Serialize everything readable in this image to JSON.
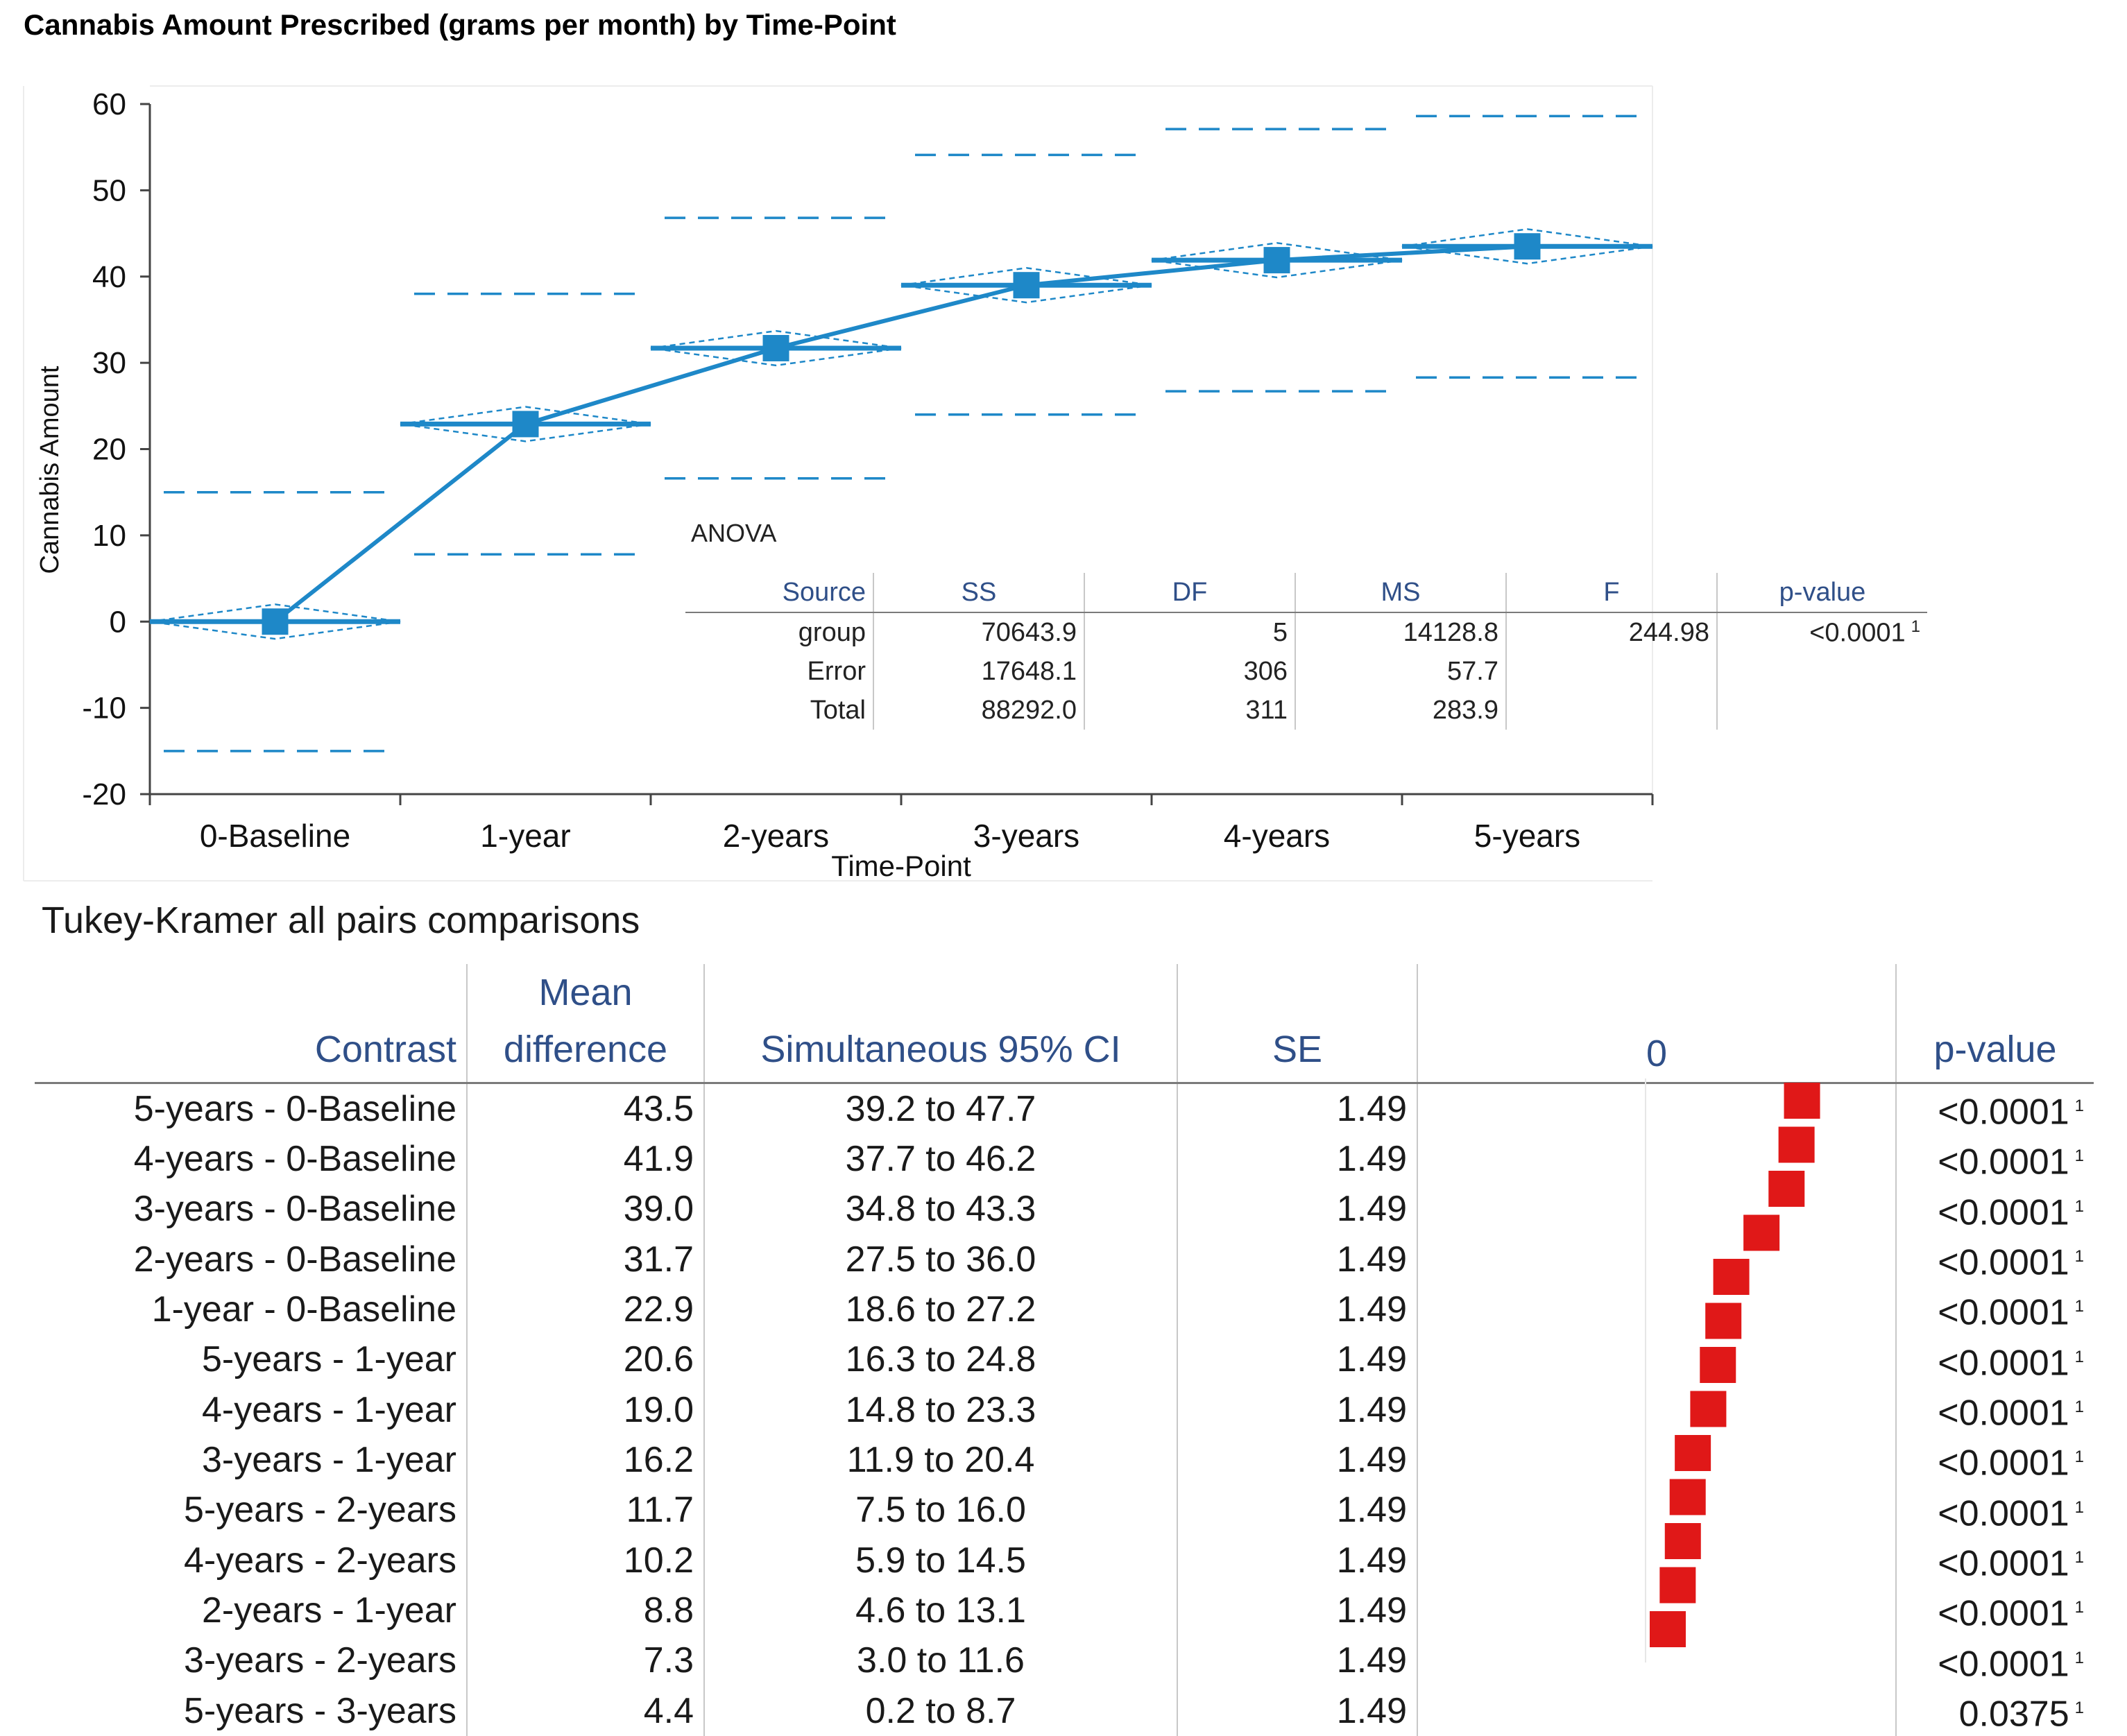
{
  "chart_data": {
    "type": "line",
    "title": "Cannabis Amount Prescribed (grams per month)  by Time-Point",
    "xlabel": "Time-Point",
    "ylabel": "Cannabis Amount",
    "ylim": [
      -20,
      60
    ],
    "yticks": [
      -20,
      -10,
      0,
      10,
      20,
      30,
      40,
      50,
      60
    ],
    "categories": [
      "0-Baseline",
      "1-year",
      "2-years",
      "3-years",
      "4-years",
      "5-years"
    ],
    "means": [
      0,
      22.9,
      31.7,
      39.0,
      41.9,
      43.5
    ],
    "ci95": [
      [
        -2,
        2
      ],
      [
        20.9,
        24.9
      ],
      [
        29.7,
        33.7
      ],
      [
        37.0,
        41.0
      ],
      [
        39.9,
        43.9
      ],
      [
        41.5,
        45.5
      ]
    ],
    "pred_intervals": [
      [
        -15,
        15
      ],
      [
        7.8,
        38.0
      ],
      [
        16.6,
        46.8
      ],
      [
        24.0,
        54.1
      ],
      [
        26.7,
        57.1
      ],
      [
        28.3,
        58.6
      ]
    ],
    "grand_mean": null
  },
  "anova": {
    "label": "ANOVA",
    "headers": [
      "Source",
      "SS",
      "DF",
      "MS",
      "F",
      "p-value"
    ],
    "rows": [
      {
        "source": "group",
        "ss": "70643.9",
        "df": "5",
        "ms": "14128.8",
        "f": "244.98",
        "p": "<0.0001",
        "note": "1"
      },
      {
        "source": "Error",
        "ss": "17648.1",
        "df": "306",
        "ms": "57.7",
        "f": "",
        "p": "",
        "note": ""
      },
      {
        "source": "Total",
        "ss": "88292.0",
        "df": "311",
        "ms": "283.9",
        "f": "",
        "p": "",
        "note": ""
      }
    ]
  },
  "tukey": {
    "title": "Tukey-Kramer all pairs comparisons",
    "headers": {
      "contrast": "Contrast",
      "mean_line1": "Mean",
      "mean_line2": "difference",
      "ci": "Simultaneous 95% CI",
      "se": "SE",
      "plot_zero": "0",
      "pvalue": "p-value"
    },
    "rows": [
      {
        "contrast": "5-years - 0-Baseline",
        "mean": "43.5",
        "ci": "39.2  to 47.7",
        "se": "1.49",
        "p": "<0.0001",
        "note": "1"
      },
      {
        "contrast": "4-years - 0-Baseline",
        "mean": "41.9",
        "ci": "37.7  to 46.2",
        "se": "1.49",
        "p": "<0.0001",
        "note": "1"
      },
      {
        "contrast": "3-years - 0-Baseline",
        "mean": "39.0",
        "ci": "34.8  to 43.3",
        "se": "1.49",
        "p": "<0.0001",
        "note": "1"
      },
      {
        "contrast": "2-years - 0-Baseline",
        "mean": "31.7",
        "ci": "27.5  to 36.0",
        "se": "1.49",
        "p": "<0.0001",
        "note": "1"
      },
      {
        "contrast": "1-year - 0-Baseline",
        "mean": "22.9",
        "ci": "18.6  to 27.2",
        "se": "1.49",
        "p": "<0.0001",
        "note": "1"
      },
      {
        "contrast": "5-years - 1-year",
        "mean": "20.6",
        "ci": "16.3  to 24.8",
        "se": "1.49",
        "p": "<0.0001",
        "note": "1"
      },
      {
        "contrast": "4-years - 1-year",
        "mean": "19.0",
        "ci": "14.8  to 23.3",
        "se": "1.49",
        "p": "<0.0001",
        "note": "1"
      },
      {
        "contrast": "3-years - 1-year",
        "mean": "16.2",
        "ci": "11.9  to 20.4",
        "se": "1.49",
        "p": "<0.0001",
        "note": "1"
      },
      {
        "contrast": "5-years - 2-years",
        "mean": "11.7",
        "ci": "7.5  to 16.0",
        "se": "1.49",
        "p": "<0.0001",
        "note": "1"
      },
      {
        "contrast": "4-years - 2-years",
        "mean": "10.2",
        "ci": "5.9  to 14.5",
        "se": "1.49",
        "p": "<0.0001",
        "note": "1"
      },
      {
        "contrast": "2-years - 1-year",
        "mean": "8.8",
        "ci": "4.6  to 13.1",
        "se": "1.49",
        "p": "<0.0001",
        "note": "1"
      },
      {
        "contrast": "3-years - 2-years",
        "mean": "7.3",
        "ci": "3.0  to 11.6",
        "se": "1.49",
        "p": "<0.0001",
        "note": "1"
      },
      {
        "contrast": "5-years - 3-years",
        "mean": "4.4",
        "ci": "0.2  to 8.7",
        "se": "1.49",
        "p": "0.0375",
        "note": "1"
      }
    ]
  },
  "colors": {
    "series": "#1e88c8",
    "header_text": "#2f4f88",
    "significant": "#d01010",
    "marker": "#e01818"
  }
}
